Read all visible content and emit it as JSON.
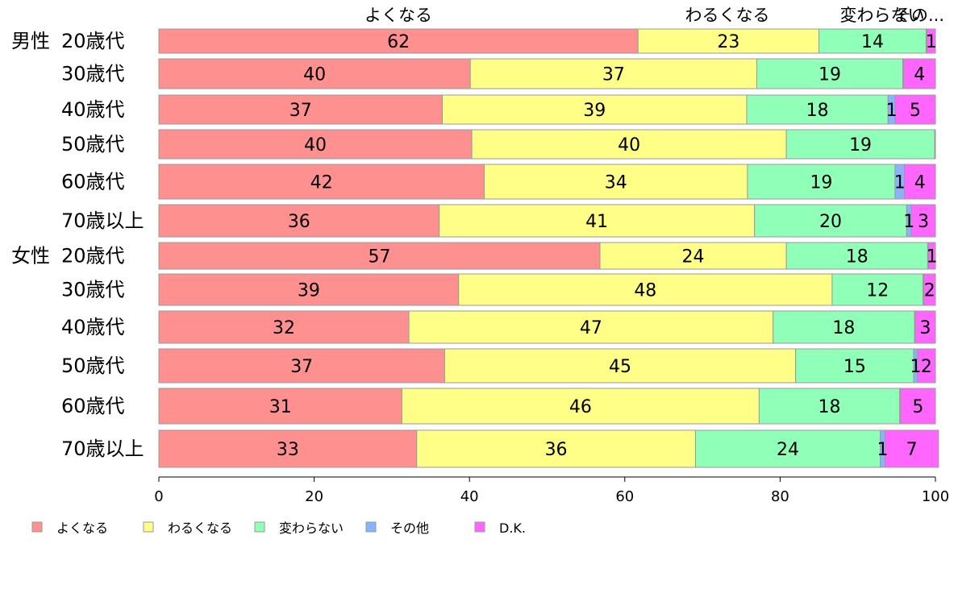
{
  "chart_data": {
    "type": "bar",
    "orientation": "horizontal",
    "stacked": true,
    "categories": [
      {
        "group": "男性",
        "label": "20歳代"
      },
      {
        "group": "",
        "label": "30歳代"
      },
      {
        "group": "",
        "label": "40歳代"
      },
      {
        "group": "",
        "label": "50歳代"
      },
      {
        "group": "",
        "label": "60歳代"
      },
      {
        "group": "",
        "label": "70歳以上"
      },
      {
        "group": "女性",
        "label": "20歳代"
      },
      {
        "group": "",
        "label": "30歳代"
      },
      {
        "group": "",
        "label": "40歳代"
      },
      {
        "group": "",
        "label": "50歳代"
      },
      {
        "group": "",
        "label": "60歳代"
      },
      {
        "group": "",
        "label": "70歳以上"
      }
    ],
    "series": [
      {
        "name": "よくなる",
        "color": "#ff9090",
        "values": [
          61.7,
          40.1,
          36.5,
          40.3,
          41.9,
          36.1,
          56.8,
          38.6,
          32.2,
          36.8,
          31.3,
          33.2
        ]
      },
      {
        "name": "わるくなる",
        "color": "#ffff88",
        "values": [
          23.3,
          36.9,
          39.2,
          40.5,
          33.9,
          40.6,
          24.0,
          48.1,
          46.9,
          45.2,
          46.0,
          35.9
        ]
      },
      {
        "name": "変わらない",
        "color": "#90ffb8",
        "values": [
          13.8,
          18.8,
          18.2,
          19.1,
          19.0,
          19.6,
          18.2,
          11.7,
          18.2,
          15.2,
          18.1,
          23.8
        ]
      },
      {
        "name": "その他",
        "color": "#88b4ff",
        "values": [
          0.1,
          0.1,
          0.9,
          0.0,
          1.2,
          0.6,
          0.1,
          0.1,
          0.1,
          0.5,
          0.1,
          0.6
        ]
      },
      {
        "name": "D.K.",
        "color": "#ff66ff",
        "values": [
          1.1,
          4.1,
          5.2,
          0.1,
          4.0,
          3.1,
          0.9,
          1.5,
          2.6,
          2.3,
          4.5,
          6.9
        ]
      }
    ],
    "segment_labels": [
      [
        "62",
        "23",
        "14",
        "",
        "1"
      ],
      [
        "40",
        "37",
        "19",
        "",
        "4"
      ],
      [
        "37",
        "39",
        "18",
        "1",
        "5"
      ],
      [
        "40",
        "40",
        "19",
        "",
        ""
      ],
      [
        "42",
        "34",
        "19",
        "1",
        "4"
      ],
      [
        "36",
        "41",
        "20",
        "1",
        "3"
      ],
      [
        "57",
        "24",
        "18",
        "",
        "1"
      ],
      [
        "39",
        "48",
        "12",
        "",
        "2"
      ],
      [
        "32",
        "47",
        "18",
        "",
        "3"
      ],
      [
        "37",
        "45",
        "15",
        "1",
        "2"
      ],
      [
        "31",
        "46",
        "18",
        "",
        "5"
      ],
      [
        "33",
        "36",
        "24",
        "1",
        "7"
      ]
    ],
    "top_labels": [
      "よくなる",
      "わるくなる",
      "変わらない",
      "その..."
    ],
    "xlim": [
      0,
      100
    ],
    "xticks": [
      0,
      20,
      40,
      60,
      80,
      100
    ],
    "grid": false,
    "legend_position": "bottom-left"
  }
}
